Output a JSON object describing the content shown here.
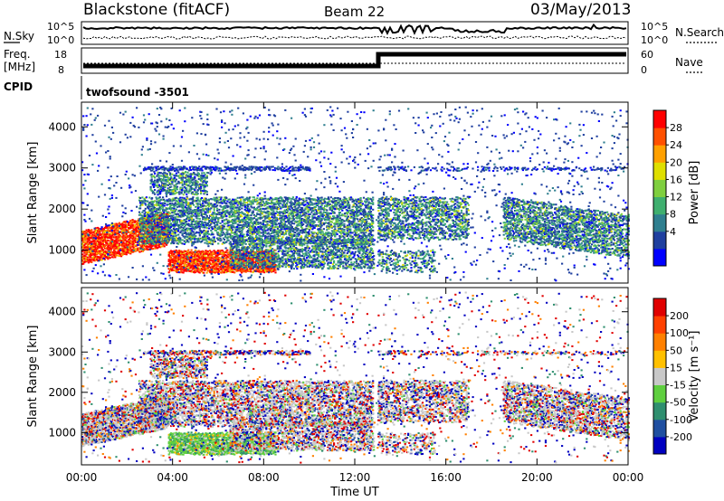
{
  "header": {
    "station": "Blackstone (fitACF)",
    "beam": "Beam 22",
    "date": "03/May/2013"
  },
  "summary": {
    "nsky_label": "N.Sky",
    "nsky_ticks": [
      "10^5",
      "10^0"
    ],
    "nsearch_label": "N.Search",
    "nsearch_ticks": [
      "10^5",
      "10^0"
    ],
    "freq_label": "Freq.",
    "freq_unit": "[MHz]",
    "freq_ticks": [
      "18",
      "8"
    ],
    "nave_label": "Nave",
    "nave_ticks": [
      "60",
      "0"
    ],
    "cpid_label": "CPID",
    "cpid_value": "twofsound -3501"
  },
  "chart_data": [
    {
      "type": "heatmap",
      "name": "power",
      "ylabel": "Slant Range [km]",
      "yticks": [
        1000,
        2000,
        3000,
        4000
      ],
      "ylim": [
        200,
        4600
      ],
      "xlim": [
        0,
        24
      ],
      "colorbar_label": "Power [dB]",
      "colorbar_ticks": [
        "28",
        "24",
        "20",
        "16",
        "12",
        "8",
        "4"
      ],
      "colorbar_colors": [
        "#0000ff",
        "#1f3f9f",
        "#2f7f8f",
        "#3faf6f",
        "#7fcf3f",
        "#dfdf00",
        "#ffa000",
        "#ff5000",
        "#ff0000"
      ]
    },
    {
      "type": "heatmap",
      "name": "velocity",
      "ylabel": "Slant Range [km]",
      "yticks": [
        1000,
        2000,
        3000,
        4000
      ],
      "ylim": [
        200,
        4600
      ],
      "xlim": [
        0,
        24
      ],
      "xlabel": "Time UT",
      "xticks": [
        "00:00",
        "04:00",
        "08:00",
        "12:00",
        "16:00",
        "20:00",
        "00:00"
      ],
      "colorbar_label": "Velocity [m s⁻¹]",
      "colorbar_ticks": [
        "200",
        "100",
        "50",
        "15",
        "-15",
        "-50",
        "-100",
        "-200"
      ],
      "colorbar_colors": [
        "#0000c0",
        "#1f4fa0",
        "#2f8f6f",
        "#5fcf3f",
        "#c8c8c8",
        "#ffc000",
        "#ff8000",
        "#ff4000",
        "#e00000"
      ]
    }
  ]
}
